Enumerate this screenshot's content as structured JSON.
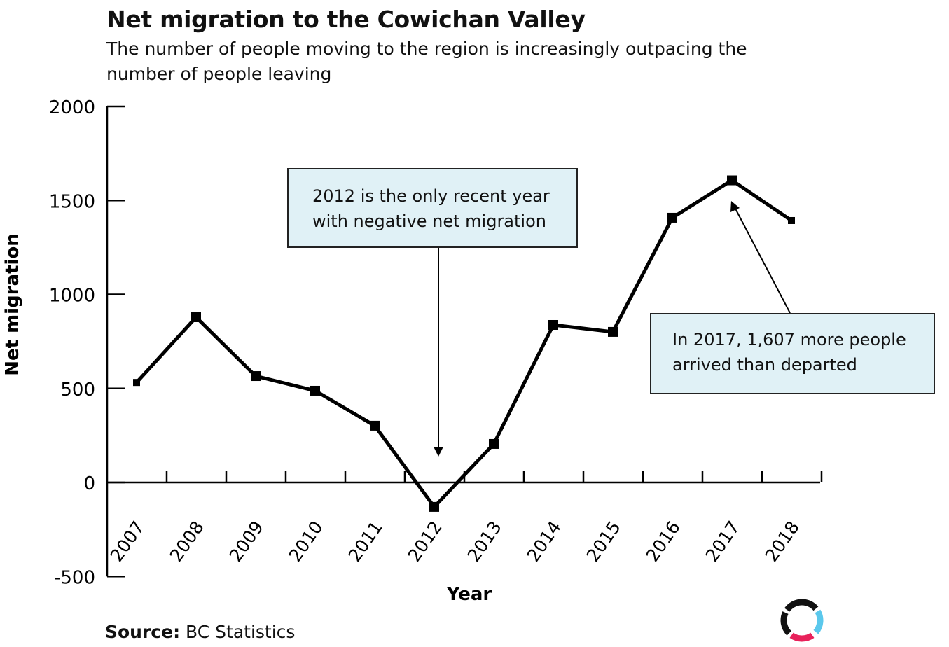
{
  "chart_data": {
    "type": "line",
    "title": "Net migration to the Cowichan Valley",
    "subtitle": "The number of people moving to the region is increasingly outpacing the number of people leaving",
    "xlabel": "Year",
    "ylabel": "Net migration",
    "ylim": [
      -500,
      2000
    ],
    "yticks": [
      "2000",
      "1500",
      "1000",
      "500",
      "0",
      "-500"
    ],
    "categories": [
      "2007",
      "2008",
      "2009",
      "2010",
      "2011",
      "2012",
      "2013",
      "2014",
      "2015",
      "2016",
      "2017",
      "2018"
    ],
    "values": [
      532,
      879,
      566,
      488,
      302,
      -130,
      205,
      838,
      801,
      1408,
      1607,
      1393
    ],
    "grid": false,
    "line_color": "#000000",
    "annotations": [
      {
        "text": "2012 is the only recent year with negative net migration",
        "target": "2012"
      },
      {
        "text": "In 2017, 1,607 more people arrived than departed",
        "target": "2017"
      }
    ],
    "annotation_bg": "#e0f1f6"
  },
  "source_label": "Source:",
  "source": "BC Statistics",
  "logo": {
    "colors": [
      "#111111",
      "#5bc8ec",
      "#e8225b"
    ]
  }
}
